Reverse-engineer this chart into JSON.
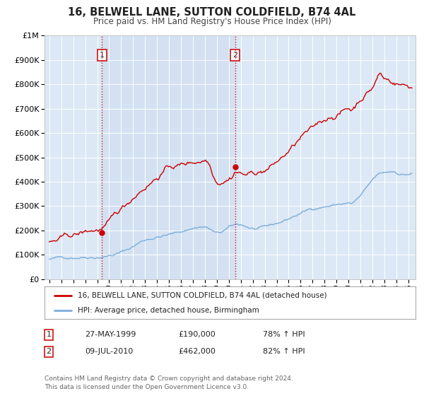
{
  "title": "16, BELWELL LANE, SUTTON COLDFIELD, B74 4AL",
  "subtitle": "Price paid vs. HM Land Registry's House Price Index (HPI)",
  "bg_color": "#ffffff",
  "plot_bg_color": "#dce8f5",
  "grid_color": "#ffffff",
  "sale1_date": 1999.41,
  "sale1_price": 190000,
  "sale2_date": 2010.52,
  "sale2_price": 462000,
  "legend_line1": "16, BELWELL LANE, SUTTON COLDFIELD, B74 4AL (detached house)",
  "legend_line2": "HPI: Average price, detached house, Birmingham",
  "table_row1": [
    "1",
    "27-MAY-1999",
    "£190,000",
    "78% ↑ HPI"
  ],
  "table_row2": [
    "2",
    "09-JUL-2010",
    "£462,000",
    "82% ↑ HPI"
  ],
  "footer": "Contains HM Land Registry data © Crown copyright and database right 2024.\nThis data is licensed under the Open Government Licence v3.0.",
  "red_color": "#cc0000",
  "blue_color": "#7aaddc",
  "shade_color": "#ccddf0",
  "red_noisy": true,
  "blue_noisy": true
}
